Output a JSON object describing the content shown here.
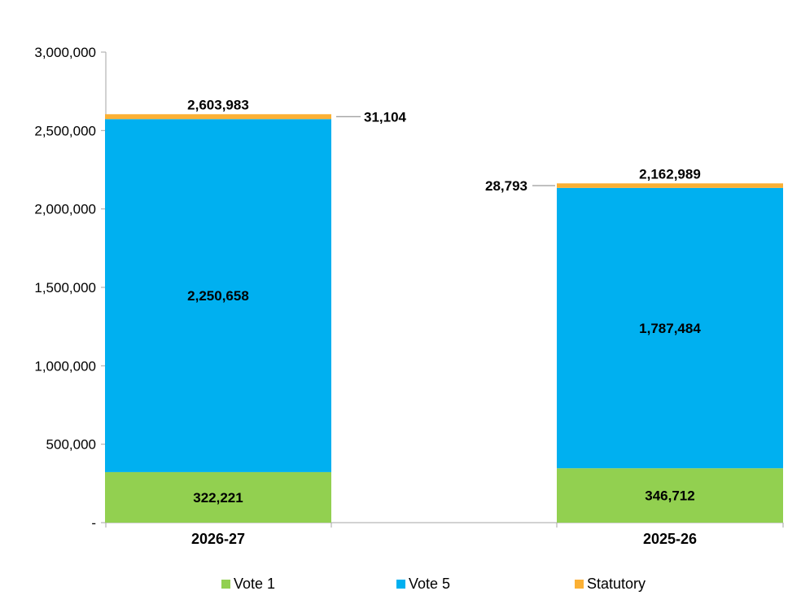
{
  "chart_data": {
    "type": "bar",
    "stacked": true,
    "categories": [
      "2026-27",
      "2025-26"
    ],
    "series": [
      {
        "name": "Vote 1",
        "color": "#92d050",
        "values": [
          322221,
          346712
        ]
      },
      {
        "name": "Vote 5",
        "color": "#00b0f0",
        "values": [
          2250658,
          1787484
        ]
      },
      {
        "name": "Statutory",
        "color": "#fbb034",
        "values": [
          31104,
          28793
        ]
      }
    ],
    "totals": [
      2603983,
      2162989
    ],
    "segment_labels": {
      "Vote 1": [
        "322,221",
        "346,712"
      ],
      "Vote 5": [
        "2,250,658",
        "1,787,484"
      ],
      "Statutory": [
        "31,104",
        "28,793"
      ]
    },
    "total_labels": [
      "2,603,983",
      "2,162,989"
    ],
    "ylim": [
      0,
      3000000
    ],
    "yticks": [
      0,
      500000,
      1000000,
      1500000,
      2000000,
      2500000,
      3000000
    ],
    "ytick_labels": [
      "-",
      "500,000",
      "1,000,000",
      "1,500,000",
      "2,000,000",
      "2,500,000",
      "3,000,000"
    ],
    "grid": false,
    "legend": "bottom",
    "title": "",
    "xlabel": "",
    "ylabel": ""
  }
}
